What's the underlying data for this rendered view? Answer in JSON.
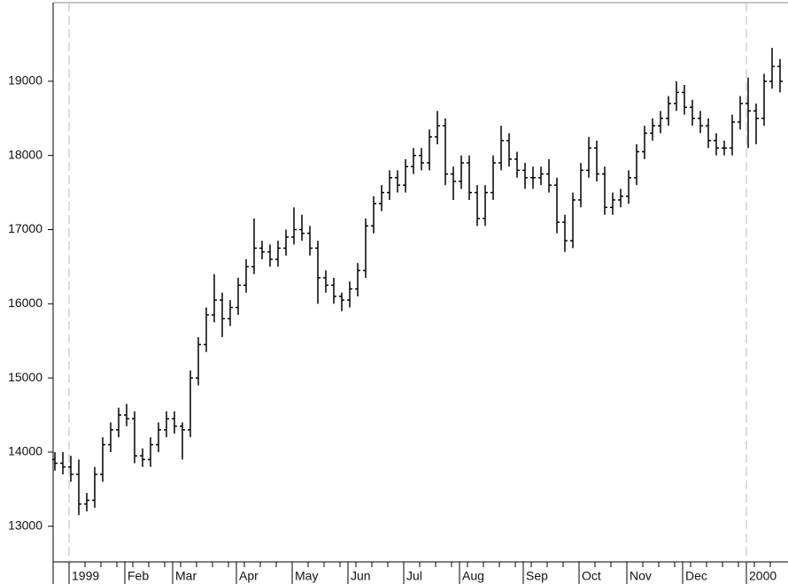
{
  "chart_data": {
    "type": "ohlc",
    "color": "#000000",
    "categories": [
      "",
      "",
      "1999",
      null,
      null,
      null,
      null,
      null,
      null,
      "Feb",
      null,
      null,
      null,
      null,
      null,
      "Mar",
      null,
      null,
      null,
      null,
      null,
      null,
      null,
      "Apr",
      null,
      null,
      null,
      null,
      null,
      null,
      "May",
      null,
      null,
      null,
      null,
      null,
      null,
      "Jun",
      null,
      null,
      null,
      null,
      null,
      null,
      "Jul",
      null,
      null,
      null,
      null,
      null,
      null,
      "Aug",
      null,
      null,
      null,
      null,
      null,
      null,
      null,
      "Sep",
      null,
      null,
      null,
      null,
      null,
      null,
      "Oct",
      null,
      null,
      null,
      null,
      null,
      "Nov",
      null,
      null,
      null,
      null,
      null,
      null,
      "Dec",
      null,
      null,
      null,
      null,
      null,
      null,
      null,
      "2000",
      null,
      null,
      null,
      null
    ],
    "open": [
      13900,
      13850,
      13800,
      13700,
      13300,
      13350,
      13700,
      14100,
      14300,
      14500,
      14450,
      13950,
      13900,
      14100,
      14300,
      14450,
      14350,
      14300,
      15000,
      15450,
      15850,
      16050,
      15800,
      15950,
      16250,
      16500,
      16750,
      16700,
      16600,
      16750,
      16900,
      17000,
      16950,
      16750,
      16350,
      16250,
      16100,
      16050,
      16200,
      16450,
      17050,
      17350,
      17500,
      17700,
      17600,
      17850,
      18000,
      17900,
      18250,
      18400,
      17750,
      17650,
      17900,
      17500,
      17150,
      17500,
      17900,
      18200,
      17950,
      17800,
      17700,
      17700,
      17750,
      17600,
      17100,
      16850,
      17400,
      17800,
      18100,
      17750,
      17300,
      17400,
      17450,
      17700,
      18050,
      18300,
      18400,
      18500,
      18700,
      18850,
      18650,
      18500,
      18400,
      18200,
      18100,
      18100,
      18450,
      18700,
      18600,
      18500,
      19000,
      19200
    ],
    "high": [
      14000,
      14000,
      13950,
      13900,
      13450,
      13800,
      14200,
      14400,
      14600,
      14650,
      14550,
      14050,
      14200,
      14400,
      14550,
      14550,
      14400,
      15100,
      15550,
      15950,
      16400,
      16150,
      16050,
      16350,
      16600,
      17150,
      16850,
      16800,
      16850,
      17000,
      17300,
      17200,
      17050,
      16850,
      16450,
      16350,
      16150,
      16300,
      16550,
      17150,
      17450,
      17600,
      17800,
      17800,
      17950,
      18100,
      18100,
      18350,
      18600,
      18500,
      17850,
      18000,
      18000,
      17600,
      17600,
      18000,
      18400,
      18300,
      18050,
      17900,
      17850,
      17850,
      17950,
      17700,
      17200,
      17500,
      17900,
      18250,
      18200,
      17850,
      17500,
      17550,
      17800,
      18150,
      18400,
      18500,
      18600,
      18800,
      19000,
      18950,
      18750,
      18600,
      18500,
      18300,
      18200,
      18550,
      18800,
      19050,
      18700,
      19100,
      19450,
      19300
    ],
    "low": [
      13750,
      13700,
      13600,
      13150,
      13200,
      13250,
      13600,
      14000,
      14200,
      14350,
      13850,
      13800,
      13800,
      14000,
      14200,
      14250,
      13900,
      14200,
      14900,
      15350,
      15750,
      15550,
      15700,
      15850,
      16150,
      16400,
      16600,
      16500,
      16500,
      16650,
      16800,
      16850,
      16650,
      16000,
      16150,
      16000,
      15900,
      15950,
      16100,
      16350,
      16950,
      17250,
      17400,
      17500,
      17500,
      17750,
      17800,
      17800,
      18150,
      17600,
      17400,
      17550,
      17400,
      17050,
      17050,
      17400,
      17800,
      17850,
      17700,
      17550,
      17550,
      17600,
      17500,
      16950,
      16700,
      16750,
      17300,
      17700,
      17650,
      17200,
      17200,
      17300,
      17350,
      17600,
      17950,
      18200,
      18300,
      18400,
      18600,
      18550,
      18400,
      18300,
      18100,
      18000,
      18000,
      18000,
      18350,
      18100,
      18150,
      18400,
      18900,
      18850
    ],
    "close": [
      13850,
      13800,
      13700,
      13300,
      13350,
      13700,
      14100,
      14300,
      14500,
      14450,
      13950,
      13900,
      14100,
      14300,
      14450,
      14350,
      14300,
      15000,
      15450,
      15850,
      16050,
      15800,
      15950,
      16250,
      16500,
      16750,
      16700,
      16600,
      16750,
      16900,
      17000,
      16950,
      16750,
      16350,
      16250,
      16100,
      16050,
      16200,
      16450,
      17050,
      17350,
      17500,
      17700,
      17600,
      17850,
      18000,
      17900,
      18250,
      18400,
      17750,
      17650,
      17900,
      17500,
      17150,
      17500,
      17900,
      18200,
      17950,
      17800,
      17700,
      17700,
      17750,
      17600,
      17100,
      16850,
      17400,
      17800,
      18100,
      17750,
      17300,
      17400,
      17450,
      17700,
      18050,
      18300,
      18400,
      18500,
      18700,
      18850,
      18650,
      18500,
      18400,
      18200,
      18100,
      18100,
      18450,
      18700,
      18600,
      18500,
      19000,
      19200,
      19000
    ],
    "ylim": [
      12520,
      20060
    ],
    "yticks": [
      13000,
      14000,
      15000,
      16000,
      17000,
      18000,
      19000
    ]
  }
}
